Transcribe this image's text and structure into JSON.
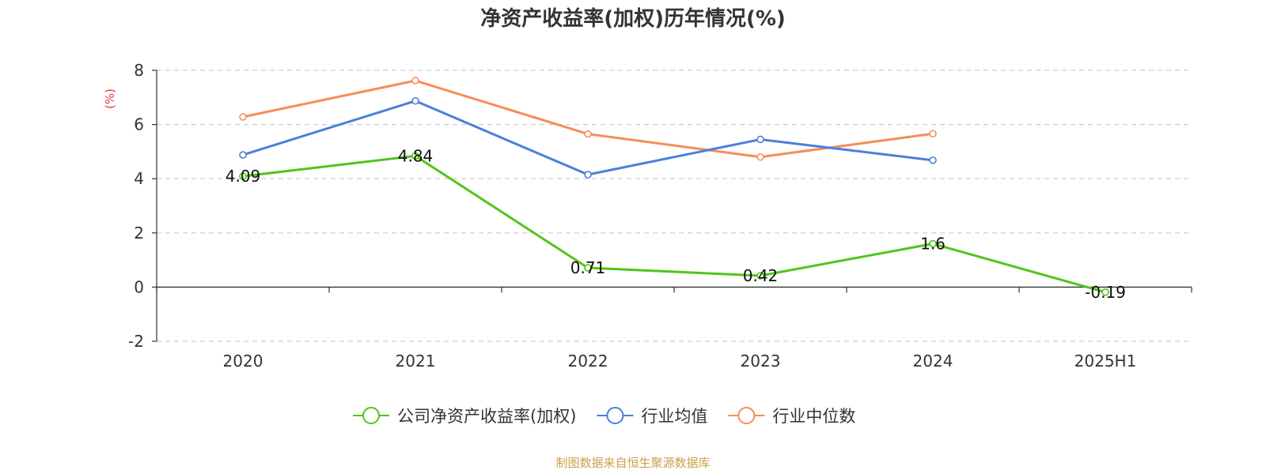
{
  "chart_data": {
    "type": "line",
    "title": "净资产收益率(加权)历年情况(%)",
    "ylabel": "(%)",
    "xlabel": "",
    "categories": [
      "2020",
      "2021",
      "2022",
      "2023",
      "2024",
      "2025H1"
    ],
    "ylim": [
      -2,
      8
    ],
    "yticks": [
      -2,
      0,
      2,
      4,
      6,
      8
    ],
    "grid": true,
    "legend_position": "bottom",
    "series": [
      {
        "name": "公司净资产收益率(加权)",
        "color": "#52c41a",
        "values": [
          4.09,
          4.84,
          0.71,
          0.42,
          1.6,
          -0.19
        ],
        "labels": [
          "4.09",
          "4.84",
          "0.71",
          "0.42",
          "1.6",
          "-0.19"
        ]
      },
      {
        "name": "行业均值",
        "color": "#4a7fdc",
        "values": [
          4.88,
          6.87,
          4.15,
          5.45,
          4.68,
          null
        ]
      },
      {
        "name": "行业中位数",
        "color": "#f78c5a",
        "values": [
          6.28,
          7.62,
          5.65,
          4.8,
          5.66,
          null
        ]
      }
    ]
  },
  "source": "制图数据来自恒生聚源数据库"
}
